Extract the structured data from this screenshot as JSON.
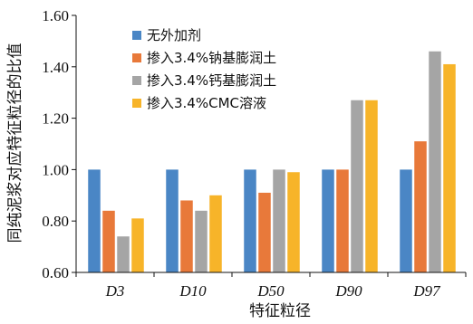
{
  "chart_data": {
    "type": "bar",
    "title": "",
    "xlabel": "特征粒径",
    "ylabel": "同纯泥浆对应特征粒径的比值",
    "ylim": [
      0.6,
      1.6
    ],
    "yticks": [
      "0.60",
      "0.80",
      "1.00",
      "1.20",
      "1.40",
      "1.60"
    ],
    "categories": [
      "D3",
      "D10",
      "D50",
      "D90",
      "D97"
    ],
    "legend_position": "top-left",
    "grid": false,
    "series": [
      {
        "name": "无外加剂",
        "color": "#4a86c5",
        "values": [
          1.0,
          1.0,
          1.0,
          1.0,
          1.0
        ]
      },
      {
        "name": "掺入3.4%钠基膨润土",
        "color": "#e8793a",
        "values": [
          0.84,
          0.88,
          0.91,
          1.0,
          1.11
        ]
      },
      {
        "name": "掺入3.4%钙基膨润土",
        "color": "#a5a5a5",
        "values": [
          0.74,
          0.84,
          1.0,
          1.27,
          1.46
        ]
      },
      {
        "name": "掺入3.4%CMC溶液",
        "color": "#f7b429",
        "values": [
          0.81,
          0.9,
          0.99,
          1.27,
          1.41
        ]
      }
    ]
  }
}
